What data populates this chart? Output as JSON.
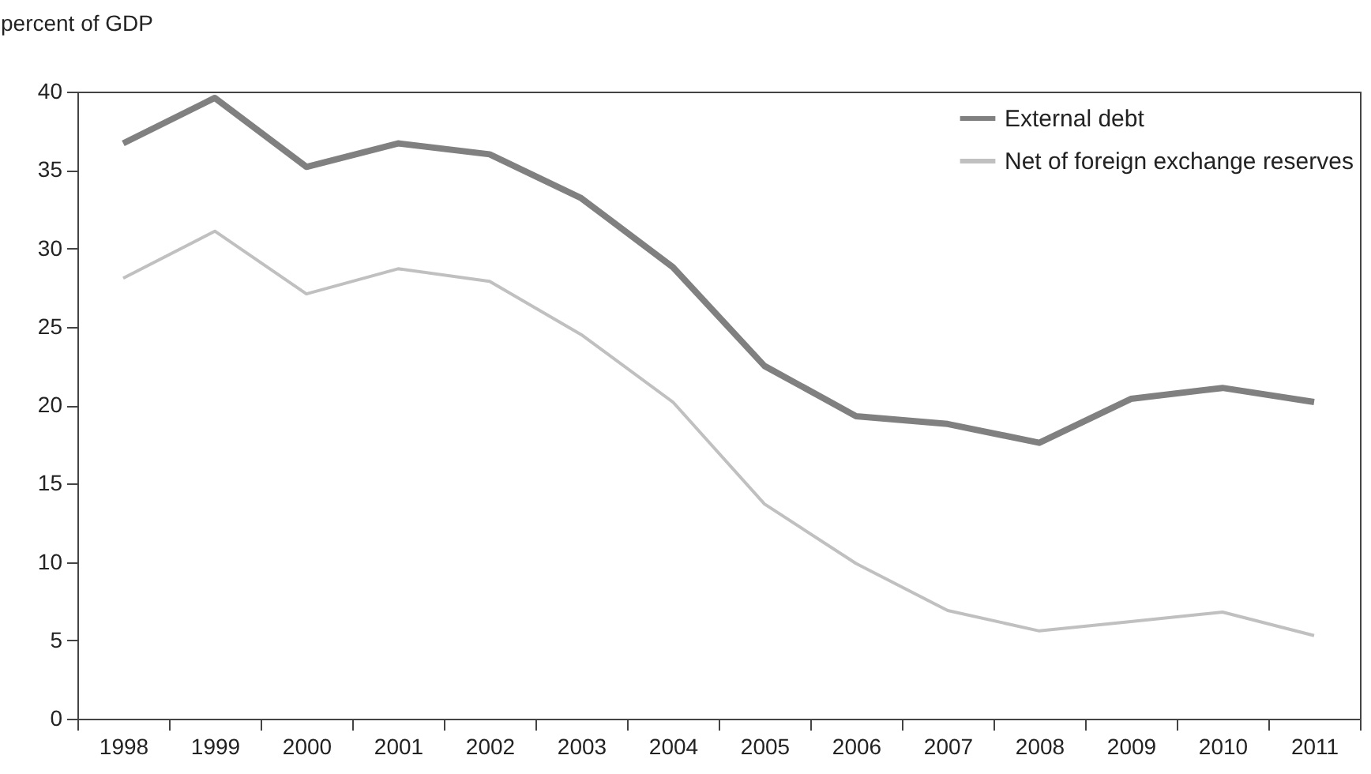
{
  "chart_data": {
    "type": "line",
    "ylabel": "percent of GDP",
    "categories": [
      "1998",
      "1999",
      "2000",
      "2001",
      "2002",
      "2003",
      "2004",
      "2005",
      "2006",
      "2007",
      "2008",
      "2009",
      "2010",
      "2011"
    ],
    "series": [
      {
        "name": "External debt",
        "color": "#808080",
        "values": [
          36.7,
          39.6,
          35.2,
          36.7,
          36.0,
          33.2,
          28.8,
          22.5,
          19.3,
          18.8,
          17.6,
          20.4,
          21.1,
          20.2
        ]
      },
      {
        "name": "Net of foreign exchange reserves",
        "color": "#c0c0c0",
        "values": [
          28.1,
          31.1,
          27.1,
          28.7,
          27.9,
          24.5,
          20.2,
          13.7,
          9.9,
          6.9,
          5.6,
          6.2,
          6.8,
          5.3
        ]
      }
    ],
    "ylim": [
      0,
      40
    ],
    "yticks": [
      0,
      5,
      10,
      15,
      20,
      25,
      30,
      35,
      40
    ],
    "grid": false,
    "legend": "top right",
    "marker": "none",
    "line_style": "solid"
  }
}
